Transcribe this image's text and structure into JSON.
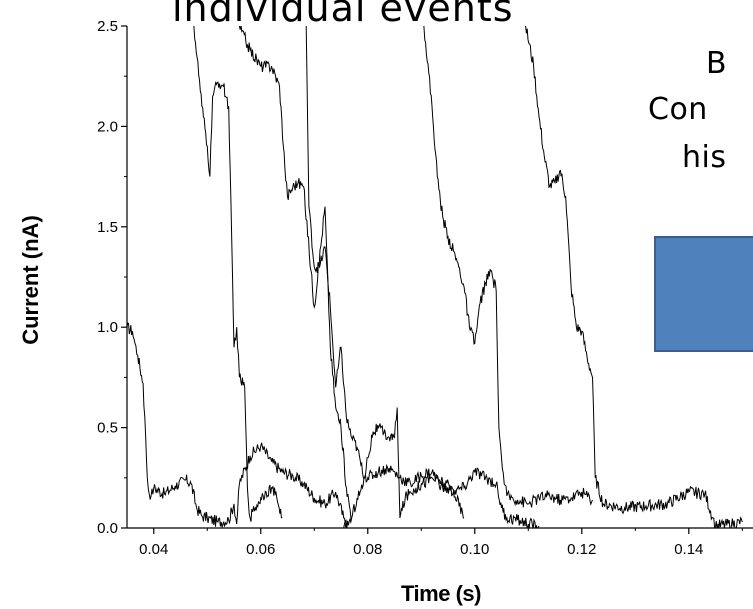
{
  "slide": {
    "title_fragment": "individual events",
    "side_text": [
      "B",
      "Con",
      "his"
    ],
    "box_color": "#4f81bd"
  },
  "chart_data": {
    "type": "line",
    "title": "",
    "xlabel": "Time (s)",
    "ylabel": "Current (nA)",
    "xlim": [
      0.035,
      0.152
    ],
    "ylim": [
      0.0,
      2.5
    ],
    "x_ticks": [
      0.04,
      0.06,
      0.08,
      0.1,
      0.12,
      0.14
    ],
    "x_tick_labels": [
      "0.04",
      "0.06",
      "0.08",
      "0.10",
      "0.12",
      "0.14"
    ],
    "y_ticks": [
      0.0,
      0.5,
      1.0,
      1.5,
      2.0,
      2.5
    ],
    "y_tick_labels": [
      "0.0",
      "0.5",
      "1.0",
      "1.5",
      "2.0",
      "2.5"
    ],
    "line_color": "#000000",
    "grid": false,
    "series": [
      {
        "x": [
          0.035,
          0.036,
          0.0365,
          0.037,
          0.038,
          0.0385,
          0.0388,
          0.039,
          0.0395,
          0.04,
          0.042,
          0.044,
          0.046,
          0.047,
          0.048,
          0.049,
          0.05,
          0.052,
          0.054,
          0.055,
          0.0555,
          0.056,
          0.058,
          0.06,
          0.062,
          0.064,
          0.066,
          0.068,
          0.07,
          0.072,
          0.074,
          0.0755,
          0.076
        ],
        "y": [
          1.0,
          0.98,
          0.92,
          0.86,
          0.72,
          0.45,
          0.25,
          0.19,
          0.16,
          0.2,
          0.17,
          0.21,
          0.24,
          0.22,
          0.1,
          0.06,
          0.05,
          0.03,
          0.04,
          0.12,
          0.02,
          0.22,
          0.36,
          0.41,
          0.33,
          0.28,
          0.26,
          0.22,
          0.15,
          0.12,
          0.18,
          0.05,
          0.0
        ]
      },
      {
        "x": [
          0.0475,
          0.049,
          0.05,
          0.0505,
          0.051,
          0.052,
          0.053,
          0.054,
          0.055,
          0.0555,
          0.056,
          0.057,
          0.0575,
          0.058,
          0.0585,
          0.059,
          0.06,
          0.061,
          0.062,
          0.063,
          0.064
        ],
        "y": [
          2.5,
          2.1,
          1.9,
          1.75,
          2.15,
          2.22,
          2.2,
          2.1,
          0.9,
          1.0,
          0.75,
          0.7,
          0.2,
          0.05,
          0.08,
          0.1,
          0.15,
          0.18,
          0.2,
          0.15,
          0.05
        ]
      },
      {
        "x": [
          0.056,
          0.058,
          0.06,
          0.062,
          0.0635,
          0.0645,
          0.065,
          0.066,
          0.067,
          0.068,
          0.07,
          0.072,
          0.073,
          0.074,
          0.075,
          0.076,
          0.077
        ],
        "y": [
          2.5,
          2.38,
          2.3,
          2.3,
          2.2,
          1.8,
          1.65,
          1.7,
          1.72,
          1.7,
          1.1,
          1.6,
          0.9,
          0.6,
          0.5,
          0.2,
          0.05
        ]
      },
      {
        "x": [
          0.0685,
          0.069,
          0.07,
          0.071,
          0.072,
          0.073,
          0.074,
          0.075,
          0.076,
          0.077,
          0.078,
          0.079,
          0.08,
          0.082,
          0.084,
          0.086,
          0.088,
          0.09,
          0.092,
          0.094,
          0.096,
          0.098,
          0.1,
          0.102,
          0.104,
          0.105,
          0.106,
          0.108,
          0.11,
          0.112
        ],
        "y": [
          2.5,
          1.6,
          1.3,
          1.3,
          1.4,
          1.1,
          0.7,
          0.9,
          0.55,
          0.45,
          0.4,
          0.28,
          0.25,
          0.28,
          0.3,
          0.25,
          0.22,
          0.26,
          0.28,
          0.2,
          0.18,
          0.2,
          0.28,
          0.25,
          0.22,
          0.1,
          0.05,
          0.04,
          0.02,
          0.01
        ]
      },
      {
        "x": [
          0.0755,
          0.0765,
          0.077,
          0.078,
          0.079,
          0.08,
          0.081,
          0.082,
          0.083,
          0.084,
          0.085,
          0.0855,
          0.086,
          0.087,
          0.088,
          0.089,
          0.09,
          0.092,
          0.094,
          0.096,
          0.098
        ],
        "y": [
          0.0,
          0.03,
          0.05,
          0.15,
          0.2,
          0.35,
          0.48,
          0.5,
          0.47,
          0.45,
          0.45,
          0.6,
          0.05,
          0.15,
          0.18,
          0.2,
          0.22,
          0.25,
          0.23,
          0.19,
          0.05
        ]
      },
      {
        "x": [
          0.0905,
          0.092,
          0.093,
          0.094,
          0.095,
          0.096,
          0.097,
          0.098,
          0.099,
          0.1,
          0.101,
          0.102,
          0.103,
          0.104,
          0.1045,
          0.105,
          0.1055,
          0.106,
          0.108,
          0.11,
          0.112,
          0.114,
          0.116,
          0.118,
          0.12,
          0.122
        ],
        "y": [
          2.5,
          2.1,
          1.75,
          1.55,
          1.45,
          1.38,
          1.3,
          1.2,
          1.0,
          0.92,
          1.12,
          1.22,
          1.28,
          1.18,
          0.5,
          0.35,
          0.22,
          0.16,
          0.14,
          0.12,
          0.15,
          0.16,
          0.14,
          0.15,
          0.18,
          0.14
        ]
      },
      {
        "x": [
          0.1095,
          0.111,
          0.112,
          0.113,
          0.114,
          0.115,
          0.116,
          0.117,
          0.118,
          0.119,
          0.12,
          0.121,
          0.122,
          0.1225,
          0.124,
          0.128,
          0.132,
          0.136,
          0.14,
          0.143,
          0.1445,
          0.145,
          0.148,
          0.15
        ],
        "y": [
          2.5,
          2.3,
          2.05,
          1.85,
          1.7,
          1.72,
          1.78,
          1.65,
          1.2,
          1.0,
          0.98,
          0.85,
          0.75,
          0.25,
          0.12,
          0.1,
          0.11,
          0.12,
          0.18,
          0.17,
          0.05,
          0.01,
          0.02,
          0.03
        ]
      }
    ]
  }
}
